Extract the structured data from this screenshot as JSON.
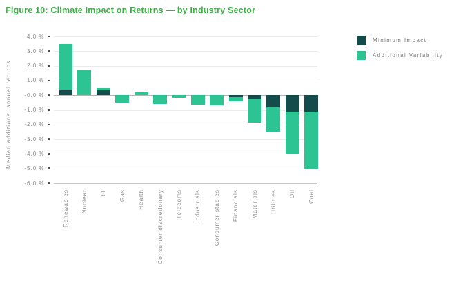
{
  "title": "Figure 10: Climate Impact on Returns — by Industry Sector",
  "colors": {
    "title_green": "#3fae49",
    "minimum_impact": "#134c4a",
    "additional_variability": "#2cc493",
    "axis_text": "#8b8b8b",
    "gridline": "#ececec",
    "zero_line": "#b4b4b4"
  },
  "legend": {
    "items": [
      {
        "label": "Minimum Impact",
        "series": "Minimum Impact"
      },
      {
        "label": "Additional Variability",
        "series": "Additional Variability"
      }
    ],
    "position": "top-right"
  },
  "chart_data": {
    "type": "bar",
    "stacked": true,
    "title": "Figure 10: Climate Impact on Returns — by Industry Sector",
    "xlabel": "",
    "ylabel": "Median additional annual returns",
    "ylim": [
      -6,
      4
    ],
    "grid": true,
    "legend_position": "top-right",
    "ytick_labels": [
      "4.0 %",
      "3.0 %",
      "2.0 %",
      "1.0 %",
      "-0.0 %",
      "-1.0 %",
      "-2.0 %",
      "-3.0 %",
      "-4.0 %",
      "-5.0 %",
      "-6.0 %"
    ],
    "ytick_values": [
      4,
      3,
      2,
      1,
      0,
      -1,
      -2,
      -3,
      -4,
      -5,
      -6
    ],
    "categories": [
      "Renewables",
      "Nuclear",
      "IT",
      "Gas",
      "Health",
      "Consumer discretionary",
      "Telecoms",
      "Industrials",
      "Consumer staples",
      "Financials",
      "Materials",
      "Utilities",
      "Oil",
      "Coal"
    ],
    "series": [
      {
        "name": "Minimum Impact",
        "color": "#134c4a",
        "values": [
          0.4,
          0,
          0.35,
          0,
          0,
          0,
          0,
          0,
          0,
          -0.15,
          -0.25,
          -0.85,
          -1.1,
          -1.1
        ]
      },
      {
        "name": "Additional Variability",
        "color": "#2cc493",
        "values": [
          3.1,
          1.75,
          0.15,
          -0.5,
          0.2,
          -0.6,
          -0.2,
          -0.65,
          -0.7,
          -0.25,
          -1.6,
          -1.65,
          -2.95,
          -3.9
        ]
      }
    ],
    "totals": [
      3.5,
      1.75,
      0.5,
      -0.5,
      0.2,
      -0.6,
      -0.2,
      -0.65,
      -0.7,
      -0.4,
      -1.85,
      -2.5,
      -4.05,
      -5.0
    ]
  }
}
